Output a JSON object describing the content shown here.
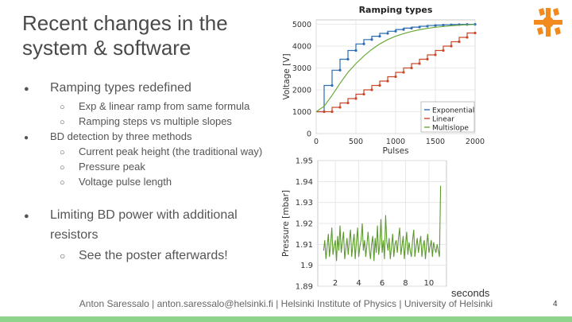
{
  "slide": {
    "title": "Recent changes in the system & software",
    "page_number": "4",
    "footer": "Anton Saressalo | anton.saressalo@helsinki.fi | Helsinki Institute of Physics | University of Helsinki",
    "bullets": {
      "b1": "Ramping types redefined",
      "b1a": "Exp & linear ramp from same formula",
      "b1b": "Ramping steps vs multiple slopes",
      "b2": "BD detection by three methods",
      "b2a": "Current peak height (the traditional way)",
      "b2b": "Pressure peak",
      "b2c": "Voltage pulse length",
      "b3_line1": "Limiting BD power with additional",
      "b3_line2": "resistors",
      "b3a": "See the poster afterwards!"
    },
    "markers": {
      "filled": "●",
      "hollow": "○"
    },
    "seconds_label": "seconds",
    "colors": {
      "accent_green": "#8fd48c",
      "logo_orange": "#f28a1e"
    }
  },
  "chart_data": [
    {
      "type": "line",
      "title": "Ramping types",
      "xlabel": "Pulses",
      "ylabel": "Voltage [V]",
      "xlim": [
        0,
        2000
      ],
      "ylim": [
        0,
        5200
      ],
      "xticks": [
        0,
        500,
        1000,
        1500,
        2000
      ],
      "yticks": [
        0,
        1000,
        2000,
        3000,
        4000,
        5000
      ],
      "grid": true,
      "legend": "bottom-right",
      "series": [
        {
          "name": "Exponential",
          "color": "#2d6db5",
          "x": [
            0,
            100,
            100,
            200,
            200,
            300,
            300,
            400,
            400,
            500,
            500,
            600,
            600,
            700,
            700,
            800,
            800,
            900,
            900,
            1000,
            1000,
            1100,
            1100,
            1200,
            1200,
            1300,
            1300,
            1400,
            1400,
            1500,
            1500,
            1600,
            1600,
            1700,
            1700,
            1800,
            1800,
            1900,
            1900,
            2000
          ],
          "y": [
            1000,
            1000,
            2200,
            2200,
            2900,
            2900,
            3400,
            3400,
            3800,
            3800,
            4100,
            4100,
            4300,
            4300,
            4450,
            4450,
            4580,
            4580,
            4680,
            4680,
            4760,
            4760,
            4820,
            4820,
            4870,
            4870,
            4910,
            4910,
            4940,
            4940,
            4960,
            4960,
            4975,
            4975,
            4985,
            4985,
            4992,
            4992,
            4996,
            4996
          ]
        },
        {
          "name": "Linear",
          "color": "#c94a2a",
          "x": [
            0,
            100,
            100,
            200,
            200,
            300,
            300,
            400,
            400,
            500,
            500,
            600,
            600,
            700,
            700,
            800,
            800,
            900,
            900,
            1000,
            1000,
            1100,
            1100,
            1200,
            1200,
            1300,
            1300,
            1400,
            1400,
            1500,
            1500,
            1600,
            1600,
            1700,
            1700,
            1800,
            1800,
            1900,
            1900,
            2000
          ],
          "y": [
            1000,
            1000,
            1000,
            1000,
            1200,
            1200,
            1400,
            1400,
            1600,
            1600,
            1800,
            1800,
            2000,
            2000,
            2200,
            2200,
            2400,
            2400,
            2600,
            2600,
            2800,
            2800,
            3000,
            3000,
            3200,
            3200,
            3400,
            3400,
            3600,
            3600,
            3800,
            3800,
            4000,
            4000,
            4200,
            4200,
            4400,
            4400,
            4600,
            4600
          ]
        },
        {
          "name": "Multislope",
          "color": "#6aaa3a",
          "x": [
            0,
            100,
            200,
            300,
            400,
            500,
            600,
            700,
            800,
            900,
            1000,
            1100,
            1200,
            1300,
            1400,
            1500,
            1600,
            1700,
            1800,
            1900,
            2000
          ],
          "y": [
            1000,
            1250,
            1750,
            2300,
            2800,
            3200,
            3550,
            3850,
            4100,
            4300,
            4450,
            4570,
            4670,
            4750,
            4810,
            4860,
            4900,
            4930,
            4955,
            4975,
            4990
          ]
        }
      ]
    },
    {
      "type": "line",
      "xlabel": "seconds",
      "ylabel": "Pressure [mbar]",
      "xlim": [
        0.5,
        11.5
      ],
      "ylim": [
        1.89,
        1.95
      ],
      "xticks": [
        2,
        4,
        6,
        8,
        10
      ],
      "yticks": [
        1.89,
        1.9,
        1.91,
        1.92,
        1.93,
        1.94,
        1.95
      ],
      "grid": true,
      "series": [
        {
          "name": "",
          "color": "#5c9a2e",
          "x": [
            1.0,
            1.1,
            1.2,
            1.3,
            1.4,
            1.5,
            1.6,
            1.7,
            1.8,
            1.9,
            2.0,
            2.1,
            2.2,
            2.3,
            2.4,
            2.5,
            2.6,
            2.7,
            2.8,
            2.9,
            3.0,
            3.1,
            3.2,
            3.3,
            3.4,
            3.5,
            3.6,
            3.7,
            3.8,
            3.9,
            4.0,
            4.1,
            4.2,
            4.3,
            4.4,
            4.5,
            4.6,
            4.7,
            4.8,
            4.9,
            5.0,
            5.1,
            5.2,
            5.3,
            5.4,
            5.5,
            5.6,
            5.7,
            5.8,
            5.9,
            6.0,
            6.1,
            6.2,
            6.3,
            6.4,
            6.5,
            6.6,
            6.7,
            6.8,
            6.9,
            7.0,
            7.1,
            7.2,
            7.3,
            7.4,
            7.5,
            7.6,
            7.7,
            7.8,
            7.9,
            8.0,
            8.1,
            8.2,
            8.3,
            8.4,
            8.5,
            8.6,
            8.7,
            8.8,
            8.9,
            9.0,
            9.1,
            9.2,
            9.3,
            9.4,
            9.5,
            9.6,
            9.7,
            9.8,
            9.9,
            10.0,
            10.1,
            10.2,
            10.3,
            10.4,
            10.5,
            10.6,
            10.7,
            10.8,
            10.9,
            11.0
          ],
          "y": [
            1.907,
            1.912,
            1.903,
            1.909,
            1.915,
            1.904,
            1.91,
            1.918,
            1.905,
            1.909,
            1.912,
            1.902,
            1.914,
            1.907,
            1.919,
            1.906,
            1.911,
            1.916,
            1.903,
            1.908,
            1.913,
            1.905,
            1.912,
            1.917,
            1.904,
            1.91,
            1.915,
            1.903,
            1.911,
            1.918,
            1.904,
            1.909,
            1.912,
            1.92,
            1.907,
            1.912,
            1.904,
            1.91,
            1.916,
            1.908,
            1.903,
            1.91,
            1.914,
            1.902,
            1.913,
            1.906,
            1.919,
            1.905,
            1.91,
            1.922,
            1.906,
            1.912,
            1.903,
            1.924,
            1.911,
            1.907,
            1.913,
            1.903,
            1.909,
            1.915,
            1.904,
            1.91,
            1.912,
            1.906,
            1.913,
            1.918,
            1.905,
            1.909,
            1.914,
            1.903,
            1.91,
            1.916,
            1.905,
            1.911,
            1.907,
            1.904,
            1.912,
            1.917,
            1.904,
            1.909,
            1.913,
            1.906,
            1.91,
            1.914,
            1.904,
            1.909,
            1.912,
            1.903,
            1.91,
            1.915,
            1.906,
            1.909,
            1.912,
            1.904,
            1.911,
            1.908,
            1.906,
            1.91,
            1.907,
            1.904,
            1.938
          ]
        }
      ]
    }
  ]
}
